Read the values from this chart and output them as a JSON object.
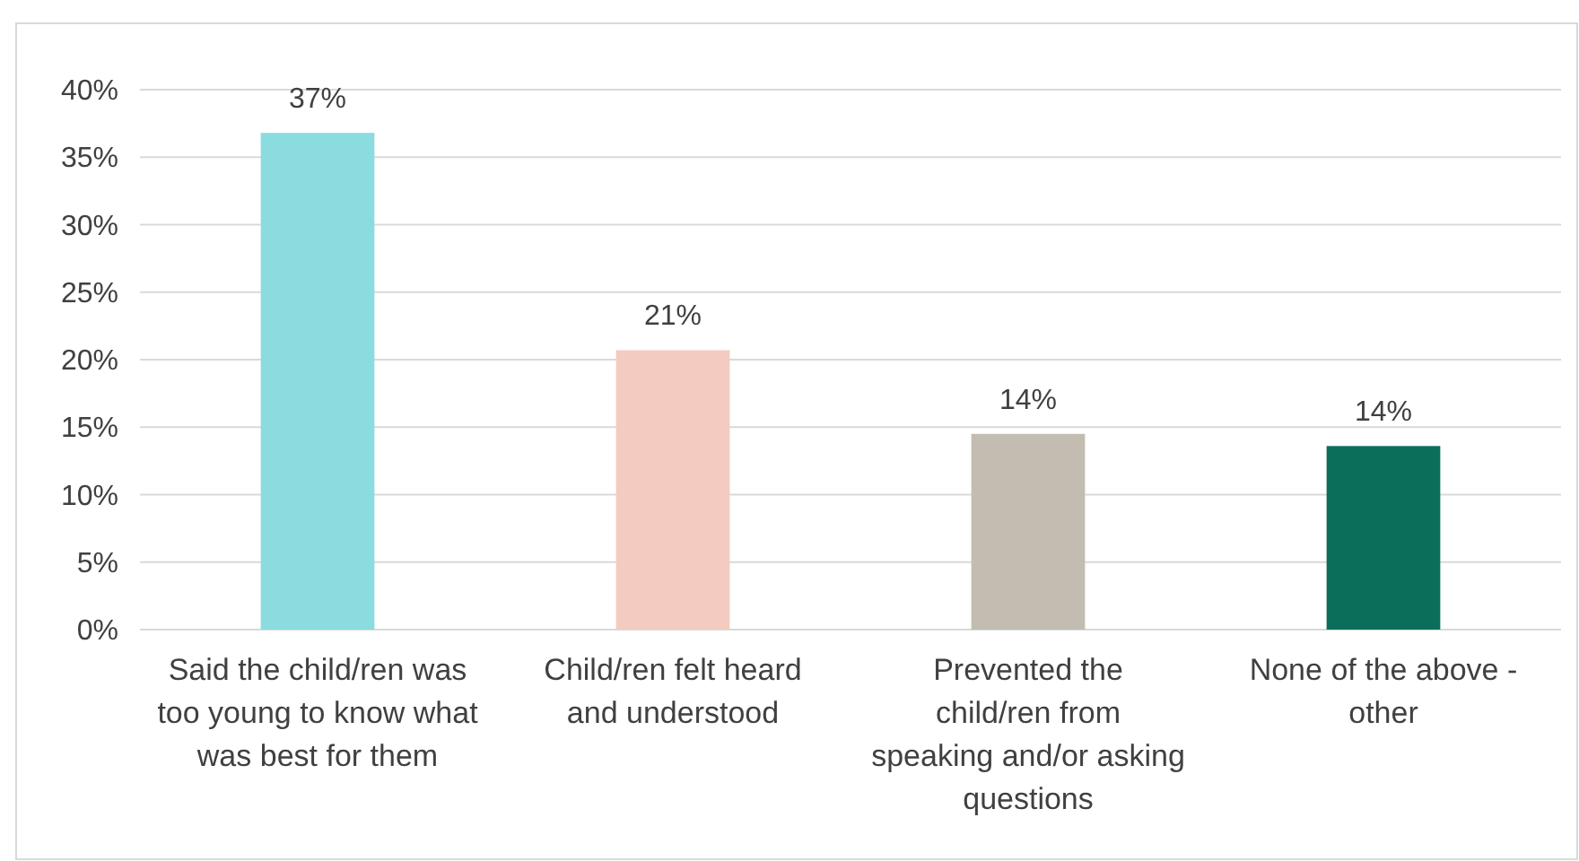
{
  "chart_data": {
    "type": "bar",
    "categories": [
      "Said the child/ren was too young to know what was best for them",
      "Child/ren felt heard and understood",
      "Prevented the child/ren from speaking and/or asking questions",
      "None of the above - other"
    ],
    "values": [
      36.8,
      20.7,
      14.5,
      13.6
    ],
    "colors": [
      "#8adcdf",
      "#f3cbc0",
      "#c3bdb1",
      "#0b6e5a"
    ],
    "value_labels": [
      "37%",
      "21%",
      "14%",
      "14%"
    ],
    "ylim": [
      0,
      40
    ],
    "yticks": [
      {
        "value": 0,
        "label": "0%"
      },
      {
        "value": 5,
        "label": "5%"
      },
      {
        "value": 10,
        "label": "10%"
      },
      {
        "value": 15,
        "label": "15%"
      },
      {
        "value": 20,
        "label": "20%"
      },
      {
        "value": 25,
        "label": "25%"
      },
      {
        "value": 30,
        "label": "30%"
      },
      {
        "value": 35,
        "label": "35%"
      },
      {
        "value": 40,
        "label": "40%"
      }
    ],
    "grid": "y"
  }
}
